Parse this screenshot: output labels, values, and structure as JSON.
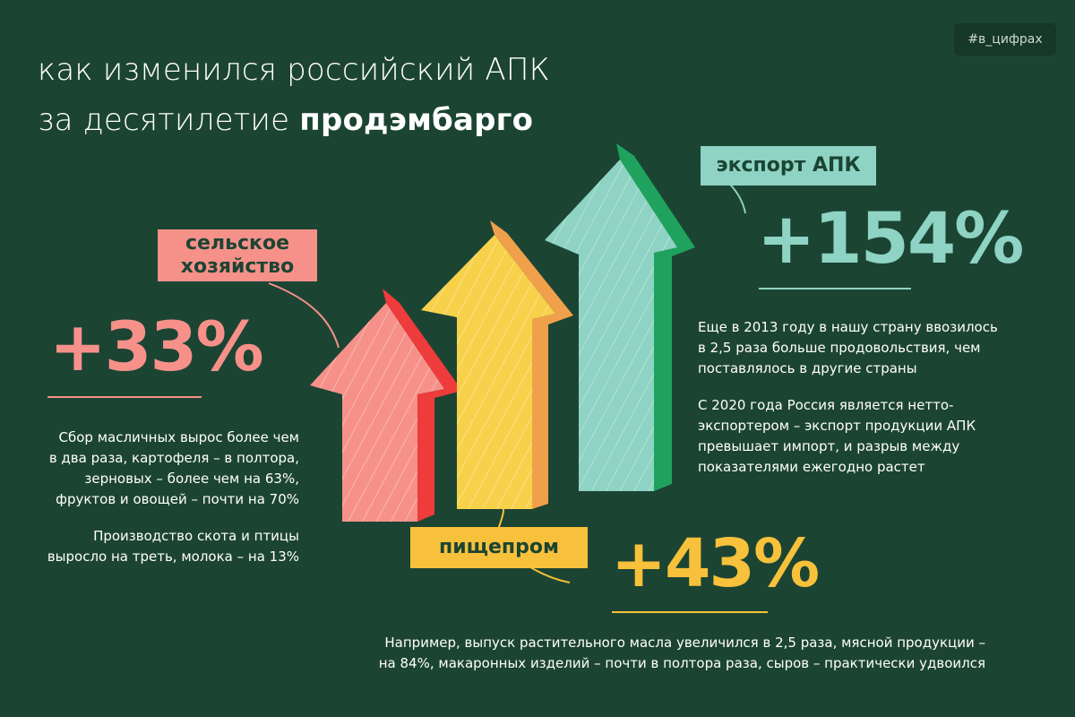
{
  "hashtag": "#в_цифрах",
  "title": {
    "line1": "как изменился российский АПК",
    "line2_prefix": "за десятилетие ",
    "line2_bold": "продэмбарго"
  },
  "agriculture": {
    "label_line1": "сельское",
    "label_line2": "хозяйство",
    "percent": "+33%",
    "paragraph1": "Сбор масличных вырос более чем\nв два раза, картофеля – в полтора,\nзерновых – более чем на 63%,\nфруктов и овощей – почти на 70%",
    "paragraph2": "Производство скота и птицы\nвыросло на треть, молока – на 13%"
  },
  "export": {
    "label": "экспорт АПК",
    "percent": "+154%",
    "paragraph1": "Еще в 2013 году в нашу страну ввозилось\nв 2,5 раза больше продовольствия, чем\nпоставлялось в другие страны",
    "paragraph2": "С 2020 года Россия является нетто-\nэкспортером – экспорт продукции АПК\nпревышает импорт, и разрыв между\nпоказателями ежегодно растет"
  },
  "food_industry": {
    "label": "пищепром",
    "percent": "+43%",
    "paragraph1": "Например, выпуск растительного масла увеличился в 2,5 раза, мясной продукции –\nна 84%, макаронных изделий – почти в полтора раза, сыров – практически удвоился"
  },
  "colors": {
    "background": "#1c4433",
    "agriculture": "#f6918a",
    "agriculture_side": "#ee3b3b",
    "food_industry": "#f7c13b",
    "food_industry_side": "#f0a04b",
    "export": "#8ed3c3",
    "export_side": "#1fa25e"
  }
}
